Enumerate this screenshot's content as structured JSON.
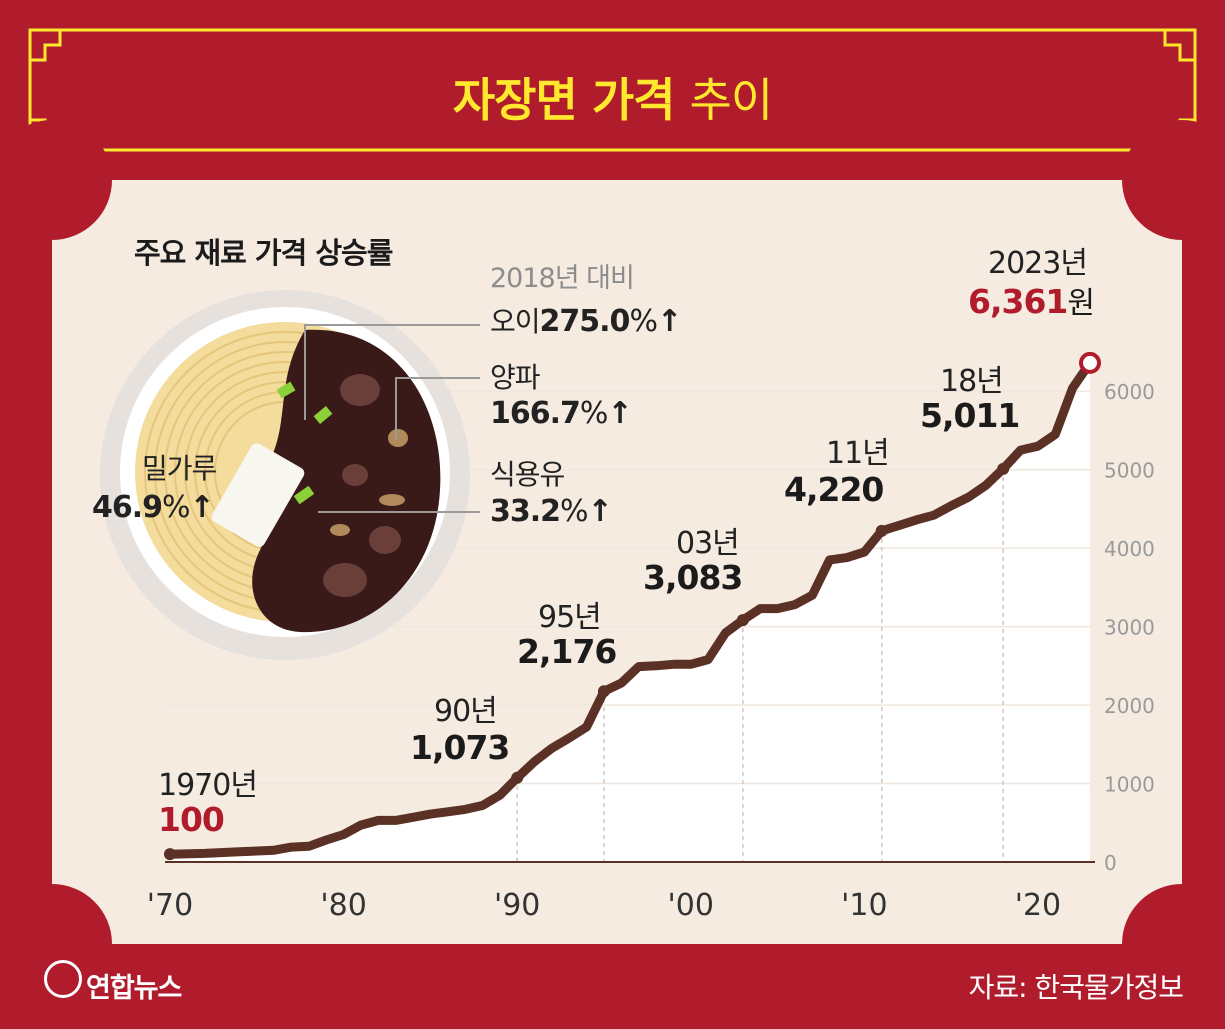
{
  "title": {
    "bold": "자장면 가격",
    "thin": "추이"
  },
  "subtitle": "주요 재료 가격 상승률",
  "ingredients": {
    "note": "2018년 대비",
    "items": [
      {
        "name": "오이",
        "value": "275.0",
        "unit": "%",
        "arrow": "↑"
      },
      {
        "name": "양파",
        "value": "166.7",
        "unit": "%",
        "arrow": "↑"
      },
      {
        "name": "식용유",
        "value": "33.2",
        "unit": "%",
        "arrow": "↑"
      },
      {
        "name": "밀가루",
        "value": "46.9",
        "unit": "%",
        "arrow": "↑"
      }
    ]
  },
  "milestones": [
    {
      "year_label": "1970년",
      "value_label": "100"
    },
    {
      "year_label": "90년",
      "value_label": "1,073"
    },
    {
      "year_label": "95년",
      "value_label": "2,176"
    },
    {
      "year_label": "03년",
      "value_label": "3,083"
    },
    {
      "year_label": "11년",
      "value_label": "4,220"
    },
    {
      "year_label": "18년",
      "value_label": "5,011"
    },
    {
      "year_label": "2023년",
      "value_label": "6,361",
      "value_unit": "원"
    }
  ],
  "chart_data": {
    "type": "area",
    "x_tick_labels": [
      "'70",
      "'80",
      "'90",
      "'00",
      "'10",
      "'20"
    ],
    "x_ticks": [
      1970,
      1980,
      1990,
      2000,
      2010,
      2020
    ],
    "y_ticks": [
      0,
      1000,
      2000,
      3000,
      4000,
      5000,
      6000
    ],
    "xlim": [
      1970,
      2023
    ],
    "ylim": [
      0,
      6500
    ],
    "x": [
      1970,
      1972,
      1974,
      1976,
      1977,
      1978,
      1979,
      1980,
      1981,
      1982,
      1983,
      1984,
      1985,
      1986,
      1987,
      1988,
      1989,
      1990,
      1991,
      1992,
      1993,
      1994,
      1995,
      1996,
      1997,
      1998,
      1999,
      2000,
      2001,
      2002,
      2003,
      2004,
      2005,
      2006,
      2007,
      2008,
      2009,
      2010,
      2011,
      2012,
      2013,
      2014,
      2015,
      2016,
      2017,
      2018,
      2019,
      2020,
      2021,
      2022,
      2023
    ],
    "values": [
      100,
      110,
      130,
      150,
      190,
      200,
      280,
      350,
      470,
      530,
      530,
      570,
      610,
      640,
      670,
      720,
      850,
      1073,
      1280,
      1450,
      1580,
      1720,
      2176,
      2280,
      2490,
      2500,
      2520,
      2520,
      2580,
      2920,
      3083,
      3230,
      3230,
      3280,
      3400,
      3850,
      3880,
      3950,
      4220,
      4290,
      4360,
      4420,
      4540,
      4650,
      4800,
      5011,
      5250,
      5300,
      5450,
      6040,
      6361
    ],
    "series": [
      {
        "name": "",
        "color": "#5b3025"
      }
    ],
    "highlighted_points": [
      1970,
      1990,
      1995,
      2003,
      2011,
      2018,
      2023
    ],
    "grid": "vertical dashed at highlighted points",
    "colors": {
      "line": "#5b3025",
      "fill": "#ffffff",
      "accent": "#b01c2c",
      "title": "#ffe82e"
    }
  },
  "footer": {
    "logo": "연합뉴스",
    "source": "자료: 한국물가정보"
  }
}
